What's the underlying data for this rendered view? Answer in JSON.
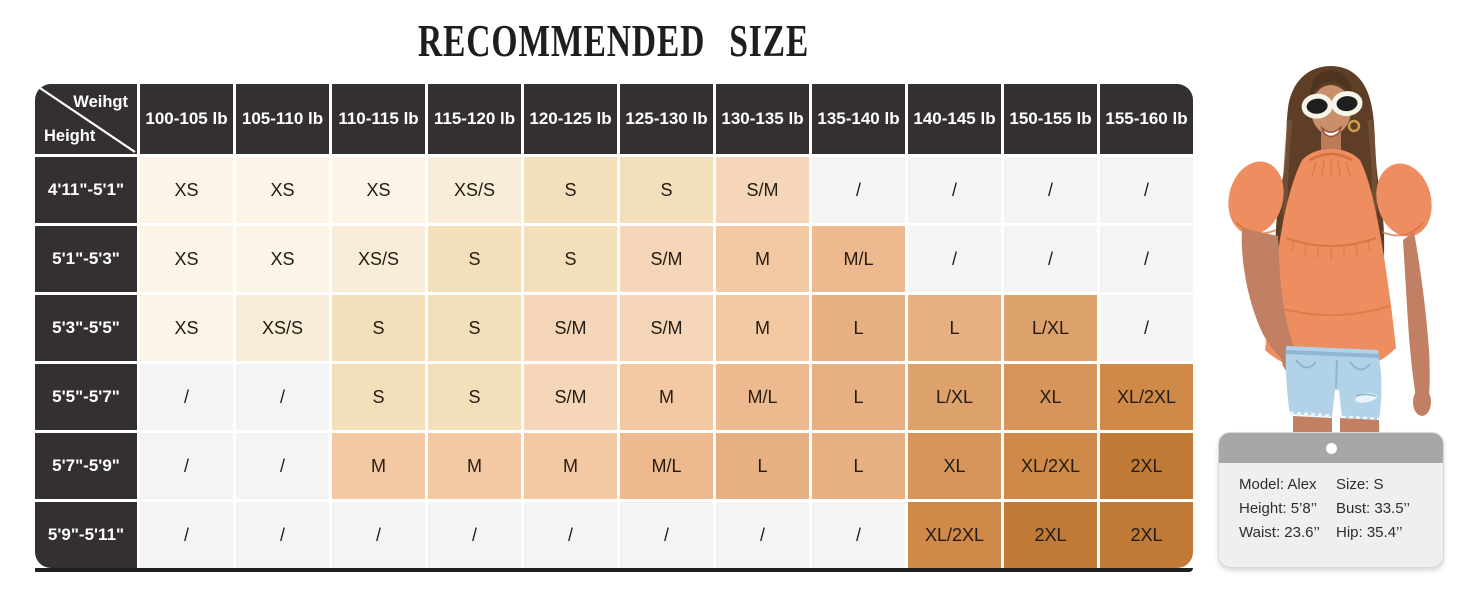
{
  "chart_data": {
    "type": "table",
    "title": "RECOMMENDED SIZE",
    "corner": {
      "top": "Weihgt",
      "bottom": "Height"
    },
    "columns": [
      "100-105 lb",
      "105-110 lb",
      "110-115 lb",
      "115-120 lb",
      "120-125 lb",
      "125-130 lb",
      "130-135 lb",
      "135-140 lb",
      "140-145 lb",
      "150-155 lb",
      "155-160 lb"
    ],
    "rows": [
      {
        "height": "4'11\"-5'1\"",
        "values": [
          "XS",
          "XS",
          "XS",
          "XS/S",
          "S",
          "S",
          "S/M",
          "/",
          "/",
          "/",
          "/"
        ]
      },
      {
        "height": "5'1\"-5'3\"",
        "values": [
          "XS",
          "XS",
          "XS/S",
          "S",
          "S",
          "S/M",
          "M",
          "M/L",
          "/",
          "/",
          "/"
        ]
      },
      {
        "height": "5'3\"-5'5\"",
        "values": [
          "XS",
          "XS/S",
          "S",
          "S",
          "S/M",
          "S/M",
          "M",
          "L",
          "L",
          "L/XL",
          "/"
        ]
      },
      {
        "height": "5'5\"-5'7\"",
        "values": [
          "/",
          "/",
          "S",
          "S",
          "S/M",
          "M",
          "M/L",
          "L",
          "L/XL",
          "XL",
          "XL/2XL"
        ]
      },
      {
        "height": "5'7\"-5'9\"",
        "values": [
          "/",
          "/",
          "M",
          "M",
          "M",
          "M/L",
          "L",
          "L",
          "XL",
          "XL/2XL",
          "2XL"
        ]
      },
      {
        "height": "5'9\"-5'11\"",
        "values": [
          "/",
          "/",
          "/",
          "/",
          "/",
          "/",
          "/",
          "/",
          "XL/2XL",
          "2XL",
          "2XL"
        ]
      }
    ],
    "layout": {
      "grid_line_color": "#ffffff",
      "header_bg": "#343030",
      "header_text": "#ffffff",
      "bottom_border": "#232020"
    }
  },
  "size_colors": {
    "/": "#f4f4f4",
    "XS": "#fdf4e8",
    "XS/S": "#f9edd9",
    "S": "#f3dfba",
    "S/M": "#f6d6b8",
    "M": "#f3c9a3",
    "M/L": "#edb98e",
    "L": "#e7b083",
    "L/XL": "#dda26c",
    "XL": "#d6965b",
    "XL/2XL": "#cf8a49",
    "2XL": "#c07a35"
  },
  "model_card": {
    "rows": [
      [
        "Model: Alex",
        "Size: S"
      ],
      [
        "Height: 5’8’’",
        "Bust: 33.5’’"
      ],
      [
        "Waist: 23.6’’",
        "Hip: 35.4’’"
      ]
    ]
  }
}
